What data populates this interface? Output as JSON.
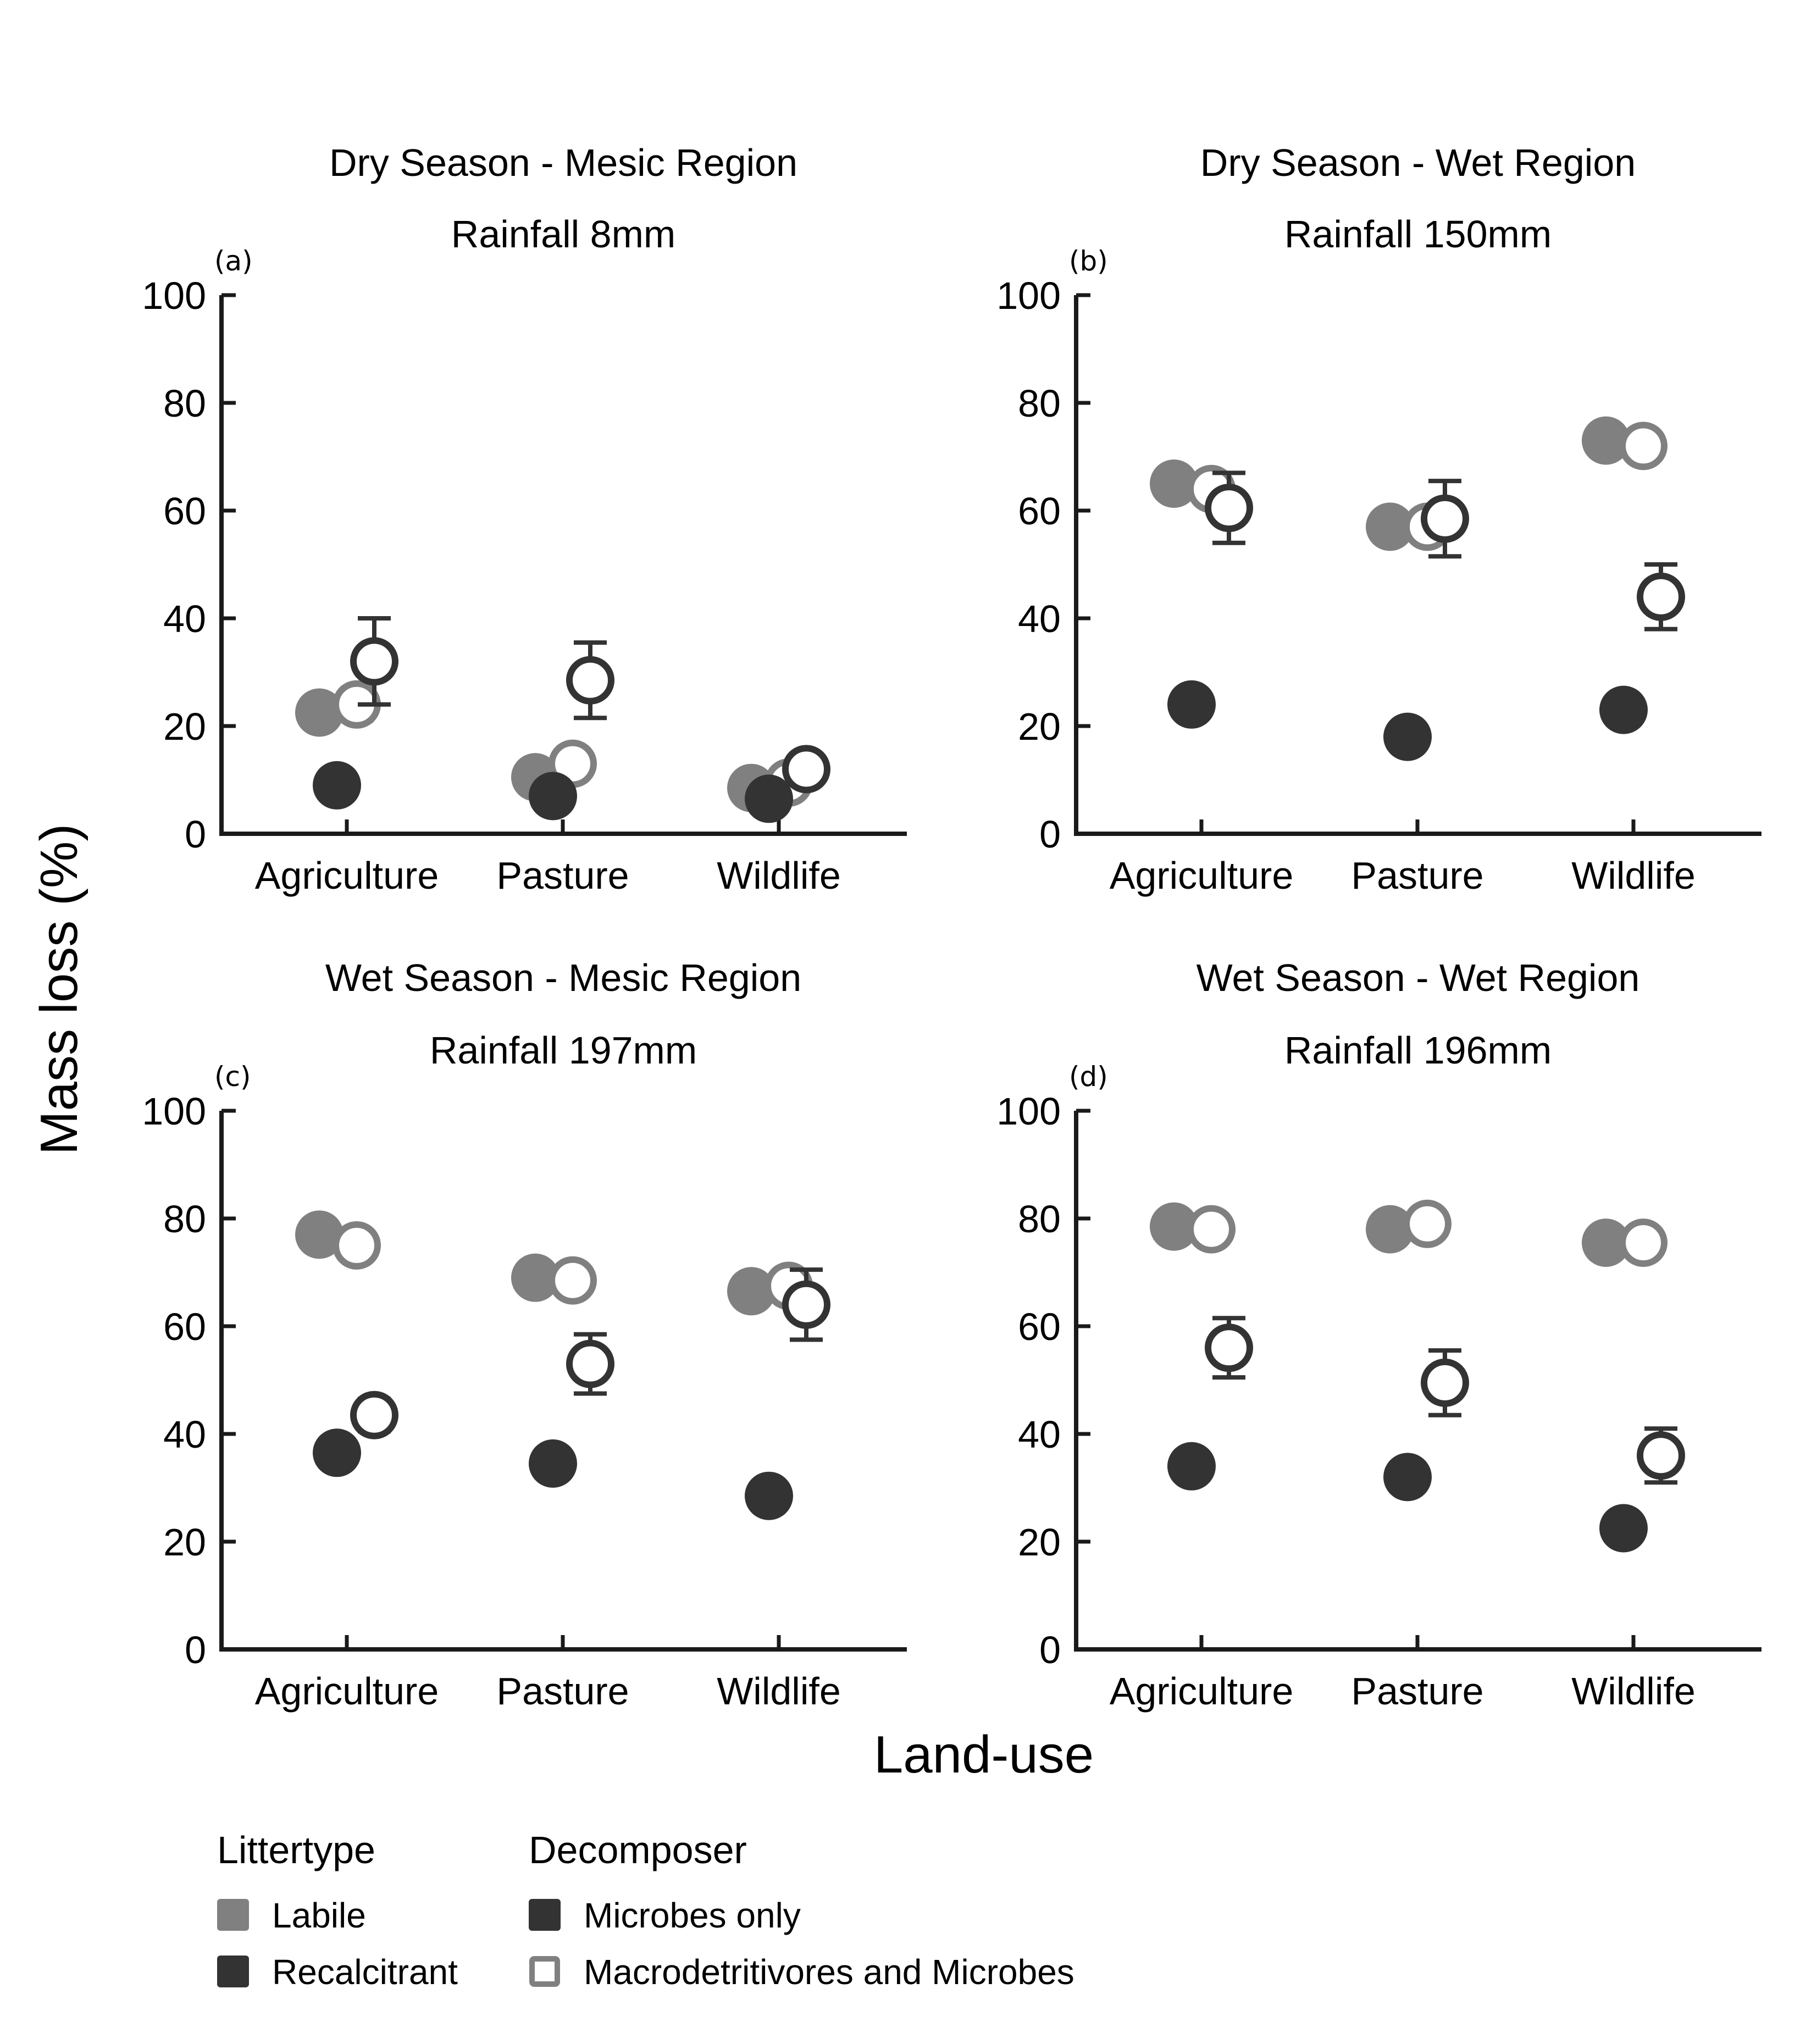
{
  "colors": {
    "labile": "#808080",
    "recalcitrant": "#333333",
    "axis": "#1a1a1a"
  },
  "axes": {
    "ylabel": "Mass loss (%)",
    "xlabel": "Land-use"
  },
  "legend": {
    "littertype": {
      "title": "Littertype",
      "items": [
        {
          "label": "Labile",
          "color": "#808080"
        },
        {
          "label": "Recalcitrant",
          "color": "#333333"
        }
      ]
    },
    "decomposer": {
      "title": "Decomposer",
      "items": [
        {
          "label": "Microbes only",
          "fill": "filled"
        },
        {
          "label": "Macrodetritivores and Microbes",
          "fill": "open"
        }
      ]
    }
  },
  "chart_data": [
    {
      "type": "scatter",
      "tag": "(a)",
      "title": "Dry Season - Mesic Region",
      "subtitle": "Rainfall 8mm",
      "categories": [
        "Agriculture",
        "Pasture",
        "Wildlife"
      ],
      "yticks": [
        0,
        20,
        40,
        60,
        80,
        100
      ],
      "ylim": [
        0,
        100
      ],
      "series": [
        {
          "name": "Labile",
          "decomposer": "Microbes only",
          "values": [
            22.5,
            10.5,
            8.5
          ],
          "err": [
            0,
            0,
            0
          ]
        },
        {
          "name": "Labile",
          "decomposer": "Macrodetritivores and Microbes",
          "values": [
            24,
            13,
            9.5
          ],
          "err": [
            3,
            0,
            0
          ]
        },
        {
          "name": "Recalcitrant",
          "decomposer": "Microbes only",
          "values": [
            9,
            7,
            6.5
          ],
          "err": [
            0,
            0,
            0
          ]
        },
        {
          "name": "Recalcitrant",
          "decomposer": "Macrodetritivores and Microbes",
          "values": [
            32,
            28.5,
            12
          ],
          "err": [
            8,
            7,
            2
          ]
        }
      ]
    },
    {
      "type": "scatter",
      "tag": "(b)",
      "title": "Dry Season - Wet Region",
      "subtitle": "Rainfall 150mm",
      "categories": [
        "Agriculture",
        "Pasture",
        "Wildlife"
      ],
      "yticks": [
        0,
        20,
        40,
        60,
        80,
        100
      ],
      "ylim": [
        0,
        100
      ],
      "series": [
        {
          "name": "Labile",
          "decomposer": "Microbes only",
          "values": [
            65,
            57,
            73
          ],
          "err": [
            0,
            0,
            0
          ]
        },
        {
          "name": "Labile",
          "decomposer": "Macrodetritivores and Microbes",
          "values": [
            64,
            57,
            72
          ],
          "err": [
            0,
            0,
            0
          ]
        },
        {
          "name": "Recalcitrant",
          "decomposer": "Microbes only",
          "values": [
            24,
            18,
            23
          ],
          "err": [
            0,
            0,
            0
          ]
        },
        {
          "name": "Recalcitrant",
          "decomposer": "Macrodetritivores and Microbes",
          "values": [
            60.5,
            58.5,
            44
          ],
          "err": [
            6.5,
            7,
            6
          ]
        }
      ]
    },
    {
      "type": "scatter",
      "tag": "(c)",
      "title": "Wet Season - Mesic Region",
      "subtitle": "Rainfall 197mm",
      "categories": [
        "Agriculture",
        "Pasture",
        "Wildlife"
      ],
      "yticks": [
        0,
        20,
        40,
        60,
        80,
        100
      ],
      "ylim": [
        0,
        100
      ],
      "series": [
        {
          "name": "Labile",
          "decomposer": "Microbes only",
          "values": [
            77,
            69,
            66.5
          ],
          "err": [
            0,
            0,
            0
          ]
        },
        {
          "name": "Labile",
          "decomposer": "Macrodetritivores and Microbes",
          "values": [
            75,
            68.5,
            67.5
          ],
          "err": [
            0,
            0,
            0
          ]
        },
        {
          "name": "Recalcitrant",
          "decomposer": "Microbes only",
          "values": [
            36.5,
            34.5,
            28.5
          ],
          "err": [
            0,
            0,
            0
          ]
        },
        {
          "name": "Recalcitrant",
          "decomposer": "Macrodetritivores and Microbes",
          "values": [
            43.5,
            53,
            64
          ],
          "err": [
            3,
            5.5,
            6.5
          ]
        }
      ]
    },
    {
      "type": "scatter",
      "tag": "(d)",
      "title": "Wet Season - Wet Region",
      "subtitle": "Rainfall 196mm",
      "categories": [
        "Agriculture",
        "Pasture",
        "Wildlife"
      ],
      "yticks": [
        0,
        20,
        40,
        60,
        80,
        100
      ],
      "ylim": [
        0,
        100
      ],
      "series": [
        {
          "name": "Labile",
          "decomposer": "Microbes only",
          "values": [
            78.5,
            78,
            75.5
          ],
          "err": [
            0,
            0,
            0
          ]
        },
        {
          "name": "Labile",
          "decomposer": "Macrodetritivores and Microbes",
          "values": [
            78,
            79,
            75.5
          ],
          "err": [
            0,
            0,
            0
          ]
        },
        {
          "name": "Recalcitrant",
          "decomposer": "Microbes only",
          "values": [
            34,
            32,
            22.5
          ],
          "err": [
            0,
            0,
            0
          ]
        },
        {
          "name": "Recalcitrant",
          "decomposer": "Macrodetritivores and Microbes",
          "values": [
            56,
            49.5,
            36
          ],
          "err": [
            5.5,
            6,
            5
          ]
        }
      ]
    }
  ]
}
